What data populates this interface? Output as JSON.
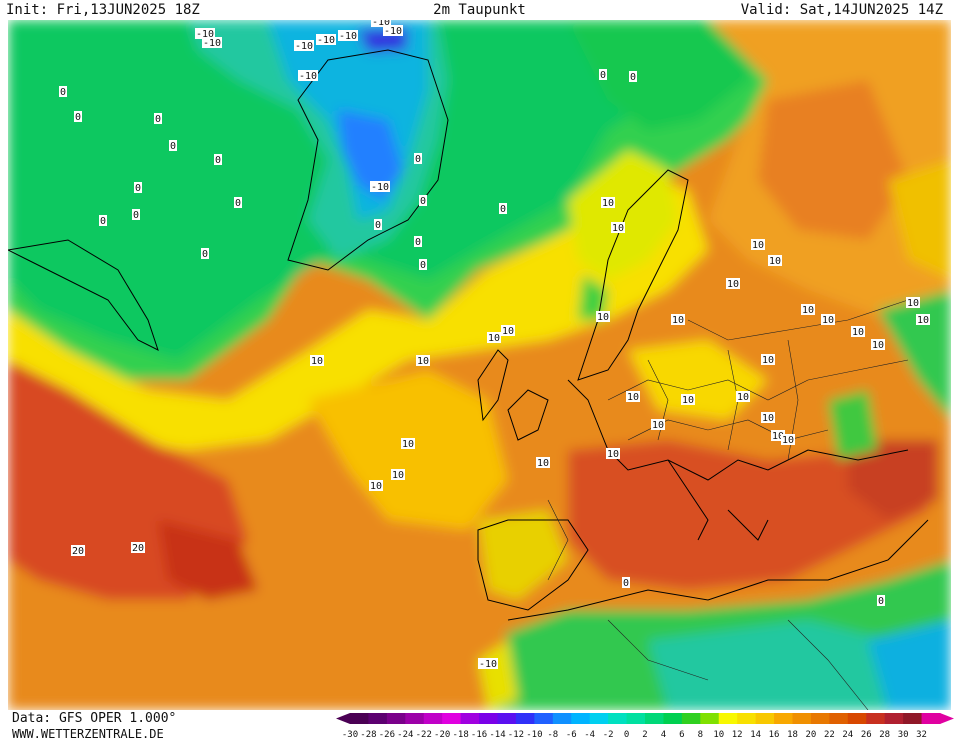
{
  "header": {
    "init": "Init: Fri,13JUN2025 18Z",
    "title": "2m Taupunkt",
    "valid": "Valid: Sat,14JUN2025 14Z"
  },
  "footer": {
    "data_source": "Data: GFS OPER 1.000°",
    "website": "WWW.WETTERZENTRALE.DE"
  },
  "legend": {
    "labels": [
      "-30",
      "-28",
      "-26",
      "-24",
      "-22",
      "-20",
      "-18",
      "-16",
      "-14",
      "-12",
      "-10",
      "-8",
      "-6",
      "-4",
      "-2",
      "0",
      "2",
      "4",
      "6",
      "8",
      "10",
      "12",
      "14",
      "16",
      "18",
      "20",
      "22",
      "24",
      "26",
      "28",
      "30",
      "32"
    ],
    "colors": [
      "#4a0054",
      "#5c0070",
      "#7a008a",
      "#9c00a8",
      "#c000c8",
      "#e000e0",
      "#a000e0",
      "#7a00e8",
      "#5a10f0",
      "#3030f8",
      "#2060ff",
      "#1090ff",
      "#00b4ff",
      "#00d0f0",
      "#00e0c0",
      "#00e0a0",
      "#00d878",
      "#00d050",
      "#30d020",
      "#80e000",
      "#f8f800",
      "#f8e000",
      "#f8c800",
      "#f8a800",
      "#f09000",
      "#e87800",
      "#e06000",
      "#d84800",
      "#c83020",
      "#b02030",
      "#901828",
      "#e000a0"
    ]
  },
  "map": {
    "contour_labels": [
      {
        "text": "-10"
      },
      {
        "text": "-10"
      },
      {
        "text": "-10"
      },
      {
        "text": "-10"
      },
      {
        "text": "-10"
      },
      {
        "text": "-10"
      },
      {
        "text": "-10"
      },
      {
        "text": "-10"
      },
      {
        "text": "-10"
      },
      {
        "text": "0"
      },
      {
        "text": "0"
      },
      {
        "text": "0"
      },
      {
        "text": "0"
      },
      {
        "text": "0"
      },
      {
        "text": "0"
      },
      {
        "text": "0"
      },
      {
        "text": "0"
      },
      {
        "text": "0"
      },
      {
        "text": "0"
      },
      {
        "text": "0"
      },
      {
        "text": "0"
      },
      {
        "text": "0"
      },
      {
        "text": "0"
      },
      {
        "text": "0"
      },
      {
        "text": "0"
      },
      {
        "text": "0"
      },
      {
        "text": "0"
      },
      {
        "text": "10"
      },
      {
        "text": "10"
      },
      {
        "text": "10"
      },
      {
        "text": "10"
      },
      {
        "text": "10"
      },
      {
        "text": "10"
      },
      {
        "text": "10"
      },
      {
        "text": "10"
      },
      {
        "text": "10"
      },
      {
        "text": "10"
      },
      {
        "text": "10"
      },
      {
        "text": "10"
      },
      {
        "text": "10"
      },
      {
        "text": "10"
      },
      {
        "text": "10"
      },
      {
        "text": "10"
      },
      {
        "text": "10"
      },
      {
        "text": "10"
      },
      {
        "text": "10"
      },
      {
        "text": "10"
      },
      {
        "text": "10"
      },
      {
        "text": "10"
      },
      {
        "text": "10"
      },
      {
        "text": "10"
      },
      {
        "text": "10"
      },
      {
        "text": "10"
      },
      {
        "text": "10"
      },
      {
        "text": "10"
      },
      {
        "text": "10"
      },
      {
        "text": "10"
      },
      {
        "text": "20"
      },
      {
        "text": "20"
      },
      {
        "text": "0"
      },
      {
        "text": "0"
      },
      {
        "text": "-10"
      }
    ]
  }
}
